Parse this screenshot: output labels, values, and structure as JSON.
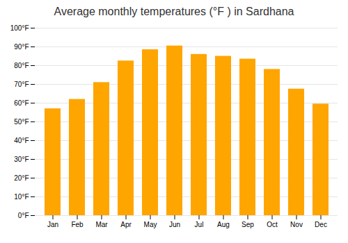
{
  "chart_data": {
    "type": "bar",
    "title": "Average monthly temperatures (°F ) in Sardhana",
    "categories": [
      "Jan",
      "Feb",
      "Mar",
      "Apr",
      "May",
      "Jun",
      "Jul",
      "Aug",
      "Sep",
      "Oct",
      "Nov",
      "Dec"
    ],
    "values": [
      57,
      62,
      71,
      82.5,
      88.5,
      90.5,
      86,
      85,
      83.5,
      78,
      67.5,
      59.5
    ],
    "color": "#FFA500",
    "ylim": [
      0,
      100
    ],
    "yticks": [
      {
        "value": 0,
        "label": "0°F"
      },
      {
        "value": 10,
        "label": "10°F"
      },
      {
        "value": 20,
        "label": "20°F"
      },
      {
        "value": 30,
        "label": "30°F"
      },
      {
        "value": 40,
        "label": "40°F"
      },
      {
        "value": 50,
        "label": "50°F"
      },
      {
        "value": 60,
        "label": "60°F"
      },
      {
        "value": 70,
        "label": "70°F"
      },
      {
        "value": 80,
        "label": "80°F"
      },
      {
        "value": 90,
        "label": "90°F"
      },
      {
        "value": 100,
        "label": "100°F"
      }
    ],
    "grid": true
  }
}
